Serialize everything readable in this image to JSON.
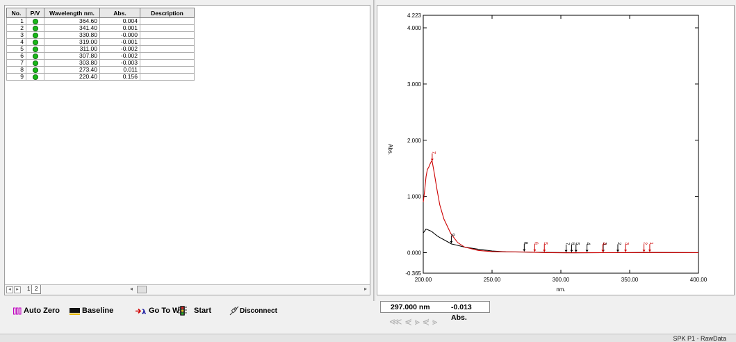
{
  "peak_table": {
    "headers": [
      "No.",
      "P/V",
      "Wavelength nm.",
      "Abs.",
      "Description"
    ],
    "rows": [
      {
        "no": "1",
        "wavelength": "364.60",
        "abs": "0.004",
        "description": ""
      },
      {
        "no": "2",
        "wavelength": "341.40",
        "abs": "0.001",
        "description": ""
      },
      {
        "no": "3",
        "wavelength": "330.80",
        "abs": "-0.000",
        "description": ""
      },
      {
        "no": "4",
        "wavelength": "319.00",
        "abs": "-0.001",
        "description": ""
      },
      {
        "no": "5",
        "wavelength": "311.00",
        "abs": "-0.002",
        "description": ""
      },
      {
        "no": "6",
        "wavelength": "307.80",
        "abs": "-0.002",
        "description": ""
      },
      {
        "no": "7",
        "wavelength": "303.80",
        "abs": "-0.003",
        "description": ""
      },
      {
        "no": "8",
        "wavelength": "273.40",
        "abs": "0.011",
        "description": ""
      },
      {
        "no": "9",
        "wavelength": "220.40",
        "abs": "0.156",
        "description": ""
      }
    ]
  },
  "sheet_tabs": [
    "1",
    "2"
  ],
  "chart_data": {
    "type": "line",
    "xlabel": "nm.",
    "ylabel": "Abs.",
    "xlim": [
      200,
      400
    ],
    "ylim": [
      -0.365,
      4.223
    ],
    "x_ticks": [
      "200.00",
      "250.00",
      "300.00",
      "350.00",
      "400.00"
    ],
    "y_ticks": [
      "4.223",
      "4.000",
      "3.000",
      "2.000",
      "1.000",
      "0.000",
      "-0.365"
    ],
    "series": [
      {
        "color": "#000000",
        "x": [
          200,
          202,
          204,
          206,
          208,
          210,
          212,
          215,
          218,
          220.4,
          225,
          230,
          240,
          250,
          260,
          273.4,
          290,
          310,
          330,
          350,
          365,
          380,
          400
        ],
        "y": [
          0.35,
          0.42,
          0.4,
          0.38,
          0.34,
          0.3,
          0.27,
          0.23,
          0.19,
          0.156,
          0.13,
          0.1,
          0.06,
          0.03,
          0.015,
          0.011,
          0.003,
          -0.002,
          0.0,
          0.001,
          0.004,
          0.002,
          0.001
        ]
      },
      {
        "color": "#cc0000",
        "x": [
          200,
          201,
          202,
          203,
          204,
          205,
          206,
          206.5,
          207,
          208,
          210,
          212,
          215,
          220,
          225,
          230,
          240,
          250,
          260,
          273.4,
          290,
          303.8,
          320,
          340,
          365,
          400
        ],
        "y": [
          0.9,
          1.1,
          1.35,
          1.48,
          1.52,
          1.58,
          1.63,
          1.62,
          1.55,
          1.42,
          1.12,
          0.85,
          0.6,
          0.34,
          0.18,
          0.1,
          0.04,
          0.02,
          0.015,
          0.011,
          0.0,
          -0.003,
          -0.001,
          0.0,
          0.002,
          0.0
        ]
      }
    ],
    "peak_markers": [
      {
        "label": "1",
        "x": 364.6,
        "abs": 0.004,
        "color": "#cc0000"
      },
      {
        "label": "2",
        "x": 360.4,
        "abs": 0.002,
        "color": "#cc0000"
      },
      {
        "label": "3",
        "x": 347.0,
        "abs": 0.001,
        "color": "#cc0000"
      },
      {
        "label": "2",
        "x": 341.4,
        "abs": 0.001,
        "color": "#000000"
      },
      {
        "label": "3",
        "x": 330.8,
        "abs": 0.0,
        "color": "#000000"
      },
      {
        "label": "4",
        "x": 330.5,
        "abs": 0.0,
        "color": "#cc0000"
      },
      {
        "label": "4",
        "x": 319.0,
        "abs": -0.001,
        "color": "#000000"
      },
      {
        "label": "5",
        "x": 311.0,
        "abs": -0.002,
        "color": "#000000"
      },
      {
        "label": "6",
        "x": 307.8,
        "abs": -0.002,
        "color": "#000000"
      },
      {
        "label": "7",
        "x": 303.8,
        "abs": -0.003,
        "color": "#000000"
      },
      {
        "label": "5",
        "x": 288.0,
        "abs": 0.003,
        "color": "#cc0000"
      },
      {
        "label": "6",
        "x": 281.0,
        "abs": 0.006,
        "color": "#cc0000"
      },
      {
        "label": "8",
        "x": 273.4,
        "abs": 0.011,
        "color": "#000000"
      },
      {
        "label": "9",
        "x": 220.4,
        "abs": 0.156,
        "color": "#000000"
      },
      {
        "label": "7",
        "x": 206.5,
        "abs": 1.62,
        "color": "#cc0000"
      }
    ]
  },
  "toolbar": {
    "auto_zero": "Auto Zero",
    "baseline": "Baseline",
    "goto_wl": "Go To WL",
    "start": "Start",
    "disconnect": "Disconnect"
  },
  "readout": {
    "wavelength": "297.000 nm",
    "absorbance": "-0.013 Abs."
  },
  "peak_nav": "⋘ ⋞ ⪢   ⋞ ⪢",
  "status": {
    "text": "SPK P1 - RawData"
  },
  "icons": [
    "auto-zero-icon",
    "baseline-icon",
    "goto-wl-icon",
    "start-icon",
    "disconnect-icon",
    "pv-peak-icon"
  ]
}
